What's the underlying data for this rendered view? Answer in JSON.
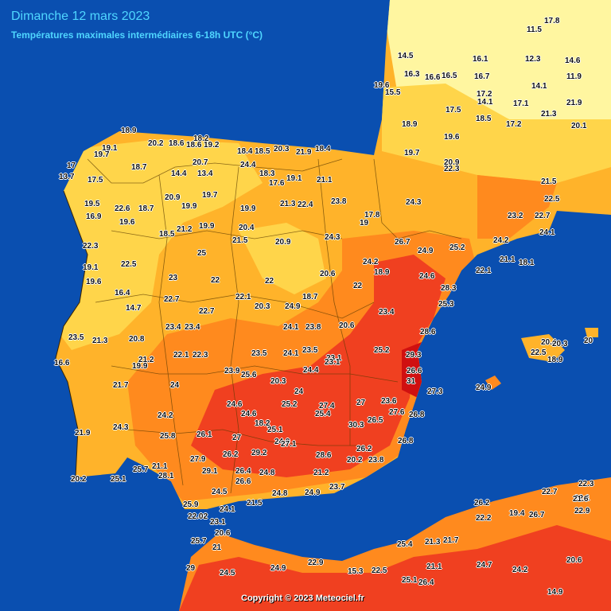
{
  "title": "Dimanche 12 mars 2023",
  "subtitle": "Températures maximales intermédiaires 6-18h UTC (°C)",
  "copyright": "Copyright © 2023 Meteociel.fr",
  "colors": {
    "sea": "#0a4fb0",
    "band_15_17": "#fff6a0",
    "band_17_20": "#ffd54a",
    "band_20_22": "#ffb32a",
    "band_22_25": "#ff8a1e",
    "band_25_30": "#f04020",
    "band_30": "#d01010",
    "borders": "#5a3a00"
  },
  "stations": [
    "18.9",
    "18.2",
    "20.2",
    "18.6",
    "18.6",
    "19.2",
    "18.4",
    "18.5",
    "20.3",
    "21.9",
    "18.4",
    "19.1",
    "19.7",
    "17",
    "13.7",
    "17.5",
    "18.7",
    "20.7",
    "14.4",
    "13.4",
    "24.4",
    "18.3",
    "17.6",
    "19.1",
    "21.1",
    "20.9",
    "19.7",
    "19.9",
    "19.5",
    "22.6",
    "18.7",
    "19.9",
    "21.3",
    "22.4",
    "23.8",
    "17.8",
    "16.9",
    "19.6",
    "18.5",
    "21.2",
    "19.9",
    "20.4",
    "21.5",
    "20.9",
    "24.3",
    "19",
    "22.3",
    "25",
    "24.2",
    "18.9",
    "19.1",
    "22.5",
    "23",
    "22",
    "20.6",
    "22",
    "19.6",
    "22.7",
    "22.1",
    "20.3",
    "24.9",
    "22",
    "18.7",
    "16.4",
    "14.7",
    "22.7",
    "23.4",
    "23.4",
    "24.1",
    "23.8",
    "20.6",
    "23.4",
    "23.5",
    "20.8",
    "21.3",
    "22.1",
    "22.3",
    "23.5",
    "24.1",
    "23.5",
    "23.1",
    "25.2",
    "16.6",
    "21.2",
    "19.9",
    "23.9",
    "25.6",
    "24.4",
    "20.3",
    "23.1",
    "24",
    "21.7",
    "24",
    "24.6",
    "25.2",
    "27.4",
    "25.4",
    "27",
    "23.6",
    "24.2",
    "24.6",
    "18.2",
    "21.9",
    "24.3",
    "25.8",
    "26.1",
    "27",
    "25.1",
    "24.9",
    "27.1",
    "30.3",
    "26.5",
    "27.9",
    "26.2",
    "29.2",
    "28.6",
    "26.2",
    "20.2",
    "20.2",
    "25.1",
    "25.7",
    "21.1",
    "28.1",
    "29.1",
    "26.4",
    "26.6",
    "24.8",
    "21.2",
    "25.9",
    "24.5",
    "21.5",
    "24.8",
    "24.9",
    "23.7",
    "24.1",
    "22.02",
    "23.1",
    "20.6",
    "25.7",
    "21",
    "29",
    "24.5",
    "24.9",
    "22.9",
    "15.3",
    "14.5",
    "19.6",
    "15.5",
    "16.3",
    "16.6",
    "16.5",
    "16.7",
    "17.5",
    "18.9",
    "19.6",
    "19.7",
    "20.9",
    "22.3",
    "24.3",
    "26.7",
    "24.9",
    "25.2",
    "22.1",
    "24.6",
    "28.3",
    "25.3",
    "28.6",
    "29.3",
    "26.6",
    "31",
    "27.3",
    "27.6",
    "26.8",
    "26.8",
    "23.8",
    "17.8",
    "11.5",
    "12.3",
    "14.6",
    "11.9",
    "14.1",
    "16.1",
    "17.2",
    "14.1",
    "17.1",
    "18.5",
    "17.2",
    "21.3",
    "20.1",
    "21.9",
    "21.5",
    "22.5",
    "23.2",
    "22.7",
    "24.1",
    "24.2",
    "21.1",
    "18.1",
    "20.4",
    "20.3",
    "20",
    "22.5",
    "18.9",
    "24.9",
    "22.7",
    "22.1",
    "22.3",
    "22.9",
    "21.6",
    "26.2",
    "22.2",
    "19.4",
    "26.7",
    "21.7",
    "21.3",
    "25.4",
    "21.1",
    "24.7",
    "24.2",
    "25.1",
    "26.4",
    "20.6",
    "22.5",
    "14.9"
  ]
}
